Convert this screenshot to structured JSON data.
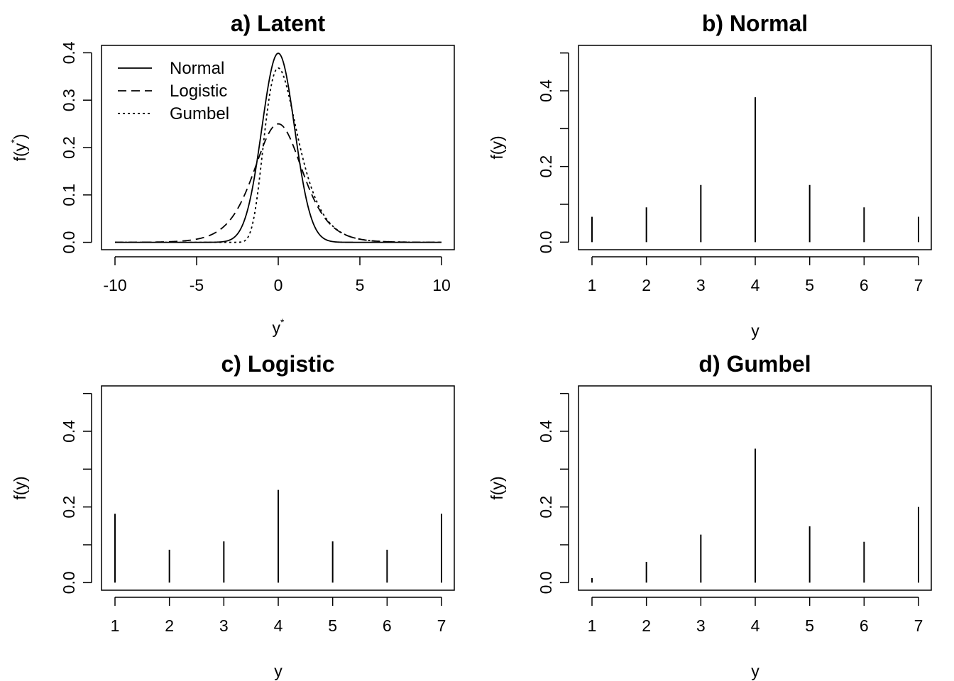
{
  "chart_data": [
    {
      "id": "a",
      "type": "line",
      "title": "a) Latent",
      "xlabel": "y*",
      "ylabel": "f(y*)",
      "xlim": [
        -10,
        10
      ],
      "ylim": [
        0,
        0.4
      ],
      "x_ticks": [
        -10,
        -5,
        0,
        5,
        10
      ],
      "x_tick_labels": [
        "-10",
        "-5",
        "0",
        "5",
        "10"
      ],
      "y_ticks": [
        0.0,
        0.1,
        0.2,
        0.3,
        0.4
      ],
      "y_tick_labels": [
        "0.0",
        "0.1",
        "0.2",
        "0.3",
        "0.4"
      ],
      "legend_position": "top-left",
      "series": [
        {
          "name": "Normal",
          "line_style": "solid",
          "distribution": "normal",
          "location": 0,
          "scale": 1,
          "peak": 0.399
        },
        {
          "name": "Logistic",
          "line_style": "dashed",
          "distribution": "logistic",
          "location": 0,
          "scale": 1,
          "peak": 0.25
        },
        {
          "name": "Gumbel",
          "line_style": "dotted",
          "distribution": "gumbel",
          "location": 0,
          "scale": 1,
          "peak": 0.368
        }
      ]
    },
    {
      "id": "b",
      "type": "bar",
      "title": "b) Normal",
      "xlabel": "y",
      "ylabel": "f(y)",
      "categories": [
        "1",
        "2",
        "3",
        "4",
        "5",
        "6",
        "7"
      ],
      "values": [
        0.067,
        0.092,
        0.151,
        0.383,
        0.151,
        0.092,
        0.067
      ],
      "ylim": [
        0,
        0.5
      ],
      "y_ticks": [
        0.0,
        0.1,
        0.2,
        0.3,
        0.4,
        0.5
      ],
      "y_tick_labels": [
        "0.0",
        "",
        "0.2",
        "",
        "0.4",
        ""
      ]
    },
    {
      "id": "c",
      "type": "bar",
      "title": "c) Logistic",
      "xlabel": "y",
      "ylabel": "f(y)",
      "categories": [
        "1",
        "2",
        "3",
        "4",
        "5",
        "6",
        "7"
      ],
      "values": [
        0.182,
        0.087,
        0.109,
        0.245,
        0.109,
        0.087,
        0.182
      ],
      "ylim": [
        0,
        0.5
      ],
      "y_ticks": [
        0.0,
        0.1,
        0.2,
        0.3,
        0.4,
        0.5
      ],
      "y_tick_labels": [
        "0.0",
        "",
        "0.2",
        "",
        "0.4",
        ""
      ]
    },
    {
      "id": "d",
      "type": "bar",
      "title": "d) Gumbel",
      "xlabel": "y",
      "ylabel": "f(y)",
      "categories": [
        "1",
        "2",
        "3",
        "4",
        "5",
        "6",
        "7"
      ],
      "values": [
        0.012,
        0.055,
        0.127,
        0.354,
        0.149,
        0.108,
        0.2
      ],
      "ylim": [
        0,
        0.5
      ],
      "y_ticks": [
        0.0,
        0.1,
        0.2,
        0.3,
        0.4,
        0.5
      ],
      "y_tick_labels": [
        "0.0",
        "",
        "0.2",
        "",
        "0.4",
        ""
      ]
    }
  ]
}
